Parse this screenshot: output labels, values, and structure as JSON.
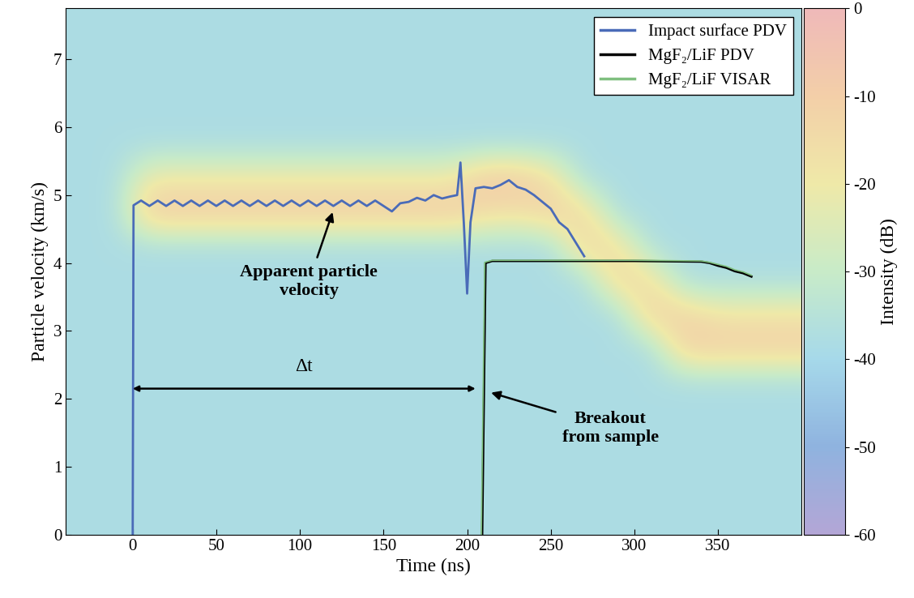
{
  "chart_data": {
    "type": "line",
    "x_label": "Time (ns)",
    "y_label": "Particle velocity (km/s)",
    "xlim": [
      -40,
      400
    ],
    "xticks": [
      0,
      50,
      100,
      150,
      200,
      250,
      300,
      350
    ],
    "ylim": [
      0,
      7.75
    ],
    "yticks": [
      0,
      1,
      2,
      3,
      4,
      5,
      6,
      7
    ],
    "legend": "upper right",
    "series": [
      {
        "name": "Impact surface PDV",
        "color": "#4a6bb8",
        "x": [
          0,
          0.5,
          5,
          10,
          15,
          20,
          25,
          30,
          35,
          40,
          45,
          50,
          55,
          60,
          65,
          70,
          75,
          80,
          85,
          90,
          95,
          100,
          105,
          110,
          115,
          120,
          125,
          130,
          135,
          140,
          145,
          150,
          155,
          160,
          165,
          170,
          175,
          180,
          185,
          190,
          194,
          196,
          198,
          200,
          202,
          205,
          210,
          215,
          220,
          225,
          230,
          235,
          240,
          245,
          250,
          255,
          260,
          265,
          270
        ],
        "values": [
          0,
          4.85,
          4.92,
          4.84,
          4.92,
          4.84,
          4.92,
          4.84,
          4.92,
          4.84,
          4.92,
          4.84,
          4.92,
          4.84,
          4.92,
          4.84,
          4.92,
          4.84,
          4.92,
          4.84,
          4.92,
          4.84,
          4.92,
          4.84,
          4.92,
          4.84,
          4.92,
          4.84,
          4.92,
          4.84,
          4.92,
          4.84,
          4.76,
          4.88,
          4.9,
          4.96,
          4.92,
          5.0,
          4.95,
          4.98,
          5.0,
          5.48,
          4.6,
          3.55,
          4.6,
          5.1,
          5.12,
          5.1,
          5.15,
          5.22,
          5.12,
          5.08,
          5.0,
          4.9,
          4.8,
          4.6,
          4.5,
          4.3,
          4.1
        ]
      },
      {
        "name": "MgF₂/LiF PDV",
        "color": "#000000",
        "x": [
          209,
          211,
          215,
          250,
          300,
          340,
          345,
          350,
          355,
          360,
          365,
          370
        ],
        "values": [
          0,
          4.0,
          4.03,
          4.03,
          4.03,
          4.02,
          4.0,
          3.96,
          3.93,
          3.88,
          3.85,
          3.8
        ]
      },
      {
        "name": "MgF₂/LiF VISAR",
        "color": "#7fbf7f",
        "x": [
          208.5,
          210.5,
          215,
          250,
          300,
          340,
          345,
          350,
          355,
          360,
          365,
          370
        ],
        "values": [
          0,
          4.01,
          4.04,
          4.04,
          4.04,
          4.03,
          4.01,
          3.98,
          3.95,
          3.9,
          3.87,
          3.82
        ]
      }
    ],
    "annotations": [
      {
        "text": "Apparent particle\nvelocity",
        "xy": [
          120,
          4.78
        ]
      },
      {
        "text": "Breakout\nfrom sample",
        "xy": [
          213,
          2.1
        ]
      }
    ],
    "span_annotation": {
      "text": "Δt",
      "span": [
        0,
        205
      ],
      "y": 2.15
    },
    "heatmap": {
      "cell_x_edges": [
        -40,
        -20,
        0,
        20,
        40,
        60,
        80,
        100,
        120,
        140,
        160,
        180,
        200,
        220,
        240,
        260,
        280,
        300,
        320,
        340,
        360,
        380,
        400
      ],
      "cell_y_edges": [
        0,
        0.5,
        1,
        1.5,
        2,
        2.5,
        3,
        3.5,
        4,
        4.5,
        5,
        5.5,
        6,
        6.5,
        7,
        7.5,
        8
      ],
      "cells": [
        [
          -38,
          -38,
          -38,
          -38,
          -38,
          -38,
          -38,
          -38,
          -38,
          -38,
          -38,
          -38,
          -38,
          -38,
          -38,
          -38,
          -38,
          -38,
          -38,
          -38,
          -38,
          -38
        ],
        [
          -38,
          -38,
          -38,
          -38,
          -38,
          -38,
          -38,
          -38,
          -38,
          -38,
          -38,
          -38,
          -38,
          -38,
          -38,
          -38,
          -38,
          -38,
          -38,
          -38,
          -38,
          -38
        ],
        [
          -38,
          -38,
          -38,
          -38,
          -38,
          -38,
          -38,
          -38,
          -38,
          -38,
          -38,
          -38,
          -38,
          -38,
          -38,
          -38,
          -38,
          -38,
          -38,
          -38,
          -38,
          -38
        ],
        [
          -38,
          -38,
          -38,
          -38,
          -38,
          -38,
          -38,
          -38,
          -38,
          -38,
          -38,
          -38,
          -38,
          -38,
          -38,
          -38,
          -38,
          -38,
          -38,
          -38,
          -38,
          -38
        ],
        [
          -38,
          -38,
          -38,
          -38,
          -38,
          -38,
          -38,
          -38,
          -38,
          -38,
          -38,
          -38,
          -38,
          -38,
          -38,
          -38,
          -38,
          -38,
          -38,
          -38,
          -38,
          -38
        ],
        [
          -38,
          -38,
          -38,
          -38,
          -38,
          -38,
          -38,
          -38,
          -38,
          -38,
          -38,
          -38,
          -38,
          -38,
          -38,
          -38,
          -38,
          -38,
          -10,
          -10,
          -10,
          -10
        ],
        [
          -38,
          -38,
          -38,
          -38,
          -38,
          -38,
          -38,
          -38,
          -38,
          -38,
          -38,
          -38,
          -38,
          -38,
          -38,
          -38,
          -38,
          -10,
          -12,
          -18,
          -18,
          -18
        ],
        [
          -38,
          -38,
          -38,
          -38,
          -38,
          -38,
          -38,
          -38,
          -38,
          -38,
          -38,
          -38,
          -38,
          -38,
          -38,
          -38,
          -12,
          -16,
          -38,
          -38,
          -38,
          -38
        ],
        [
          -38,
          -38,
          -38,
          -38,
          -38,
          -38,
          -38,
          -38,
          -38,
          -38,
          -38,
          -38,
          -38,
          -38,
          -38,
          -12,
          -16,
          -38,
          -38,
          -38,
          -38,
          -38
        ],
        [
          -38,
          -38,
          -8,
          -8,
          -8,
          -8,
          -8,
          -8,
          -8,
          -8,
          -8,
          -8,
          -14,
          -16,
          -10,
          -14,
          -38,
          -38,
          -38,
          -38,
          -38,
          -38
        ],
        [
          -38,
          -38,
          -20,
          -20,
          -20,
          -20,
          -20,
          -20,
          -20,
          -20,
          -20,
          -20,
          -8,
          -8,
          -16,
          -38,
          -38,
          -38,
          -38,
          -38,
          -38,
          -38
        ],
        [
          -38,
          -38,
          -38,
          -38,
          -38,
          -38,
          -38,
          -38,
          -38,
          -38,
          -38,
          -38,
          -38,
          -38,
          -38,
          -38,
          -38,
          -38,
          -38,
          -38,
          -38,
          -38
        ],
        [
          -38,
          -38,
          -38,
          -38,
          -38,
          -38,
          -38,
          -38,
          -38,
          -38,
          -38,
          -38,
          -38,
          -38,
          -38,
          -38,
          -38,
          -38,
          -38,
          -38,
          -38,
          -38
        ],
        [
          -38,
          -38,
          -38,
          -38,
          -38,
          -38,
          -38,
          -38,
          -38,
          -38,
          -38,
          -38,
          -38,
          -38,
          -38,
          -38,
          -38,
          -38,
          -38,
          -38,
          -38,
          -38
        ],
        [
          -38,
          -38,
          -38,
          -38,
          -38,
          -38,
          -38,
          -38,
          -38,
          -38,
          -38,
          -38,
          -38,
          -38,
          -38,
          -38,
          -38,
          -38,
          -38,
          -38,
          -38,
          -38
        ],
        [
          -38,
          -38,
          -38,
          -38,
          -38,
          -38,
          -38,
          -38,
          -38,
          -38,
          -38,
          -38,
          -38,
          -38,
          -38,
          -38,
          -38,
          -38,
          -38,
          -38,
          -38,
          -38
        ]
      ],
      "colorbar_label": "Intensity (dB)",
      "colorbar_range": [
        -60,
        0
      ],
      "colorbar_ticks": [
        0,
        -10,
        -20,
        -30,
        -40,
        -50,
        -60
      ]
    }
  }
}
